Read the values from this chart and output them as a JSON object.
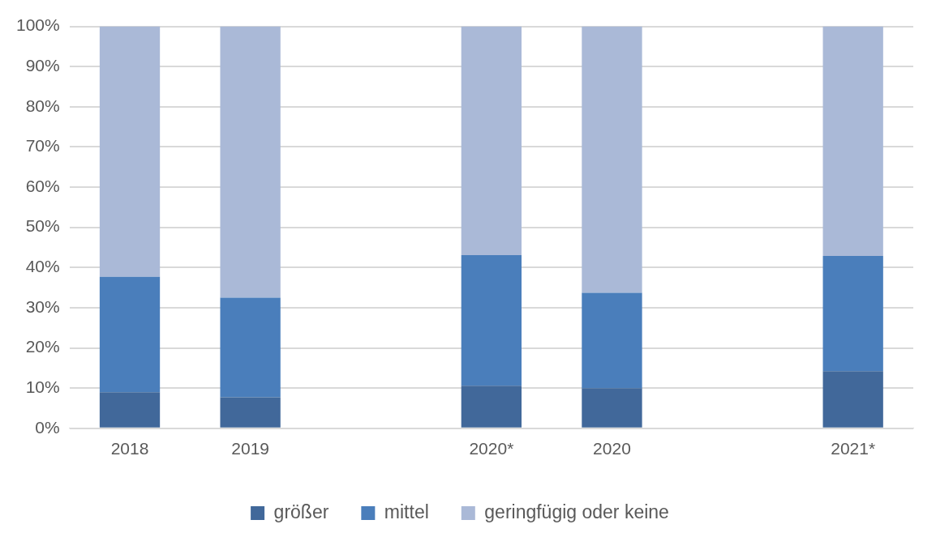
{
  "chart_data": {
    "type": "bar",
    "stacked": true,
    "categories": [
      "2018",
      "2019",
      null,
      "2020*",
      "2020",
      null,
      "2021*"
    ],
    "series": [
      {
        "name": "größer",
        "color": "#41689a",
        "values": [
          9.0,
          7.7,
          null,
          10.6,
          10.0,
          null,
          14.2
        ]
      },
      {
        "name": "mittel",
        "color": "#4a7ebb",
        "values": [
          28.7,
          24.8,
          null,
          32.5,
          23.7,
          null,
          28.7
        ]
      },
      {
        "name": "geringfügig oder keine",
        "color": "#aab9d7",
        "values": [
          62.3,
          67.5,
          null,
          56.9,
          66.3,
          null,
          57.1
        ]
      }
    ],
    "ylim": [
      0,
      100
    ],
    "yticks": [
      {
        "value": 0,
        "label": "0%"
      },
      {
        "value": 10,
        "label": "10%"
      },
      {
        "value": 20,
        "label": "20%"
      },
      {
        "value": 30,
        "label": "30%"
      },
      {
        "value": 40,
        "label": "40%"
      },
      {
        "value": 50,
        "label": "50%"
      },
      {
        "value": 60,
        "label": "60%"
      },
      {
        "value": 70,
        "label": "70%"
      },
      {
        "value": 80,
        "label": "80%"
      },
      {
        "value": 90,
        "label": "90%"
      },
      {
        "value": 100,
        "label": "100%"
      }
    ],
    "grid": "y",
    "legend": "bottom"
  }
}
